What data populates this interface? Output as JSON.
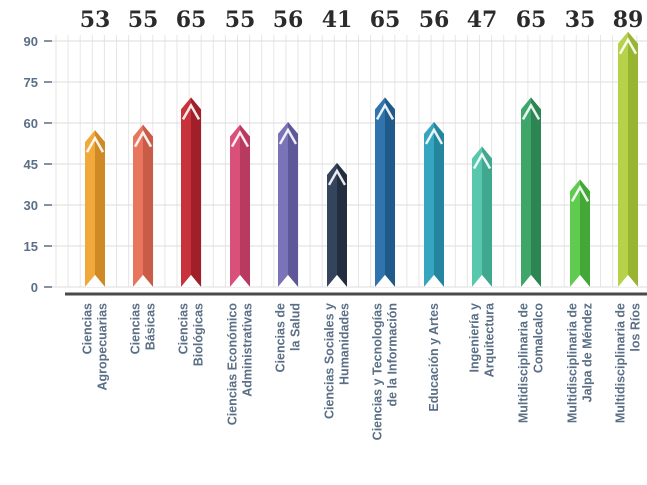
{
  "chart_data": {
    "type": "bar",
    "title": "",
    "xlabel": "",
    "ylabel": "",
    "ylim": [
      0,
      90
    ],
    "yticks": [
      0,
      15,
      30,
      45,
      60,
      75,
      90
    ],
    "grid": true,
    "categories": [
      [
        "Ciencias",
        "Agropecuarias"
      ],
      [
        "Ciencias",
        "Básicas"
      ],
      [
        "Ciencias",
        "Biológicas"
      ],
      [
        "Ciencias Económico",
        "Administrativas"
      ],
      [
        "Ciencias de",
        "la Salud"
      ],
      [
        "Ciencias Sociales y",
        "Humanidades"
      ],
      [
        "Ciencias y Tecnologías",
        "de la Información"
      ],
      [
        "Educación y Artes"
      ],
      [
        "Ingeniería y",
        "Arquitectura"
      ],
      [
        "Multidisciplinaria de",
        "Comalcalco"
      ],
      [
        "Multidisciplinaria de",
        "Jalpa de Méndez"
      ],
      [
        "Multidisciplinaria de",
        "los Ríos"
      ]
    ],
    "values": [
      53,
      55,
      65,
      55,
      56,
      41,
      65,
      56,
      47,
      65,
      35,
      89
    ],
    "colors": [
      "#f2a93b",
      "#e8765f",
      "#c8323a",
      "#d9507a",
      "#7a73b8",
      "#34445c",
      "#2f74ad",
      "#36a6c0",
      "#57c8ad",
      "#3fa66a",
      "#5fcb4f",
      "#b5d24a"
    ],
    "darkColors": [
      "#d08a24",
      "#c95c47",
      "#a01f28",
      "#b83a61",
      "#5e5899",
      "#222e40",
      "#1f5a8a",
      "#23869e",
      "#3fa88f",
      "#2c8553",
      "#43a838",
      "#98b532"
    ]
  }
}
